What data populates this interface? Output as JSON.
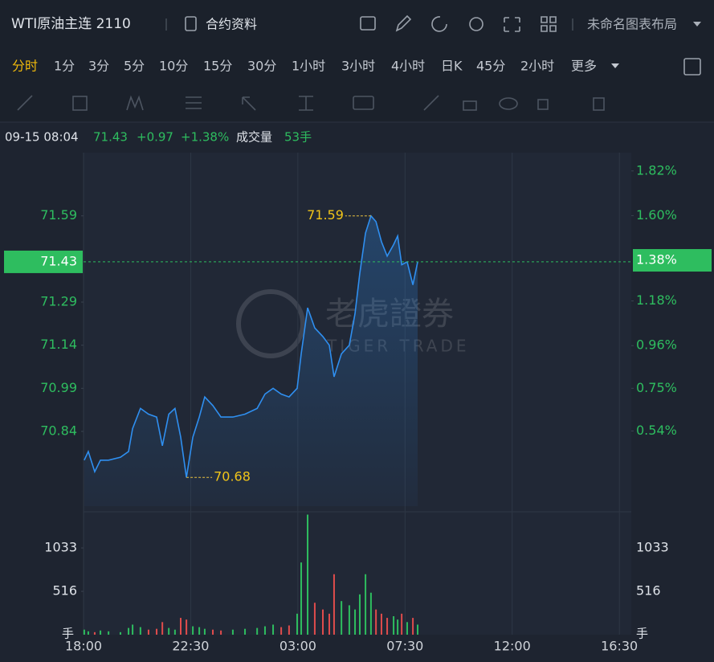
{
  "header": {
    "title": "WTI原油主连 2110",
    "contract": "合约资料",
    "layout": "未命名图表布局"
  },
  "periods": {
    "items": [
      "分时",
      "1分",
      "3分",
      "5分",
      "10分",
      "15分",
      "30分",
      "1小时",
      "3小时",
      "4小时",
      "日K",
      "45分",
      "2小时",
      "更多"
    ],
    "active": 0
  },
  "info": {
    "time": "09-15 08:04",
    "price": "71.43",
    "change": "+0.97",
    "change_pct": "+1.38%",
    "volume_label": "成交量",
    "volume": "53手"
  },
  "chart_data": {
    "type": "line",
    "color": "#2f8ff0",
    "x": [
      0.03,
      0.2,
      0.47,
      0.71,
      1.05,
      1.55,
      1.89,
      2.06,
      2.39,
      2.73,
      3.07,
      3.31,
      3.58,
      3.84,
      4.08,
      4.32,
      4.59,
      4.86,
      5.09,
      5.43,
      5.77,
      6.27,
      6.78,
      7.29,
      7.62,
      7.96,
      8.3,
      8.63,
      8.97,
      9.14,
      9.41,
      9.71,
      10.05,
      10.32,
      10.52,
      10.83,
      11.16,
      11.4,
      11.6,
      11.84,
      12.07,
      12.28,
      12.51,
      12.75,
      13.02,
      13.19,
      13.36,
      13.59,
      13.83,
      14.03
    ],
    "values": [
      70.74,
      70.77,
      70.7,
      70.74,
      70.74,
      70.75,
      70.77,
      70.85,
      70.92,
      70.9,
      70.89,
      70.79,
      70.9,
      70.92,
      70.82,
      70.68,
      70.82,
      70.89,
      70.96,
      70.93,
      70.89,
      70.89,
      70.9,
      70.92,
      70.97,
      70.99,
      70.97,
      70.96,
      70.99,
      71.11,
      71.27,
      71.2,
      71.17,
      71.14,
      71.03,
      71.11,
      71.14,
      71.25,
      71.39,
      71.53,
      71.59,
      71.57,
      71.5,
      71.45,
      71.49,
      71.52,
      71.42,
      71.43,
      71.35,
      71.43
    ],
    "xlim": [
      0,
      23
    ],
    "xticks": [
      {
        "value": 0,
        "label": "18:00"
      },
      {
        "value": 4.5,
        "label": "22:30"
      },
      {
        "value": 9,
        "label": "03:00"
      },
      {
        "value": 13.5,
        "label": "07:30"
      },
      {
        "value": 18,
        "label": "12:00"
      },
      {
        "value": 22.5,
        "label": "16:30"
      }
    ],
    "ylim": [
      70.58,
      71.81
    ],
    "yticks": [
      71.59,
      71.29,
      71.14,
      70.99,
      70.84
    ],
    "y2lim": [
      0.17,
      1.91
    ],
    "y2ticks": [
      {
        "value": 1.82,
        "label": "1.82%"
      },
      {
        "value": 1.6,
        "label": "1.60%"
      },
      {
        "value": 1.18,
        "label": "1.18%"
      },
      {
        "value": 0.96,
        "label": "0.96%"
      },
      {
        "value": 0.75,
        "label": "0.75%"
      },
      {
        "value": 0.54,
        "label": "0.54%"
      }
    ],
    "last_price": 71.43,
    "last_pct": {
      "value": 1.38,
      "label": "1.38%"
    },
    "tick_color": "#2ebd5f",
    "annotations": [
      {
        "label": "71.59",
        "x": 12.07,
        "y": 71.59,
        "side": "left"
      },
      {
        "label": "70.68",
        "x": 4.32,
        "y": 70.68,
        "side": "right"
      }
    ],
    "volume": {
      "values": [
        60,
        40,
        30,
        50,
        40,
        30,
        80,
        120,
        90,
        60,
        70,
        150,
        80,
        60,
        200,
        180,
        100,
        90,
        70,
        60,
        50,
        60,
        70,
        80,
        100,
        120,
        90,
        110,
        250,
        860,
        1430,
        380,
        300,
        250,
        720,
        400,
        350,
        300,
        480,
        720,
        500,
        300,
        250,
        200,
        220,
        180,
        250,
        150,
        200,
        120
      ],
      "ylim": [
        0,
        1435
      ],
      "yticks": [
        1033,
        516
      ],
      "unit": "手",
      "up_color": "#2ebd5f",
      "down_color": "#e04c4c"
    },
    "watermark": {
      "title": "老虎證券",
      "subtitle": "TIGER TRADE"
    }
  }
}
